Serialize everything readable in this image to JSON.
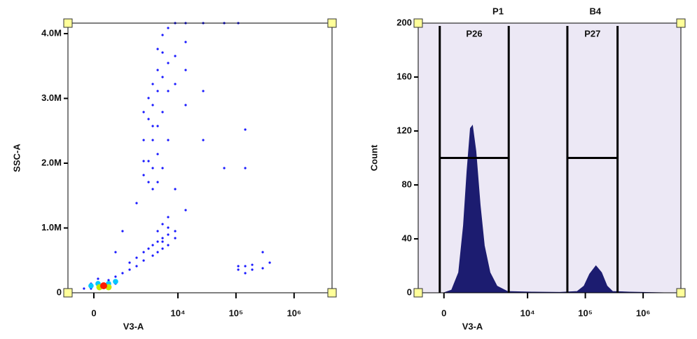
{
  "chart_data": [
    {
      "type": "scatter",
      "xlabel": "V3-A",
      "ylabel": "SSC-A",
      "xscale": {
        "type": "biexponential",
        "width": 716
      },
      "xlim": [
        -870,
        4500000
      ],
      "xticks": [
        0,
        {
          "value": 10000,
          "label": "10⁴"
        },
        {
          "value": 100000,
          "label": "10⁵"
        },
        {
          "value": 1000000,
          "label": "10⁶"
        }
      ],
      "ylim": [
        0,
        4162000
      ],
      "yticks": [
        0,
        {
          "value": 1000000,
          "label": "1.0M"
        },
        {
          "value": 2000000,
          "label": "2.0M"
        },
        {
          "value": 3000000,
          "label": "3.0M"
        },
        {
          "value": 4000000,
          "label": "4.0M"
        }
      ],
      "series": [
        {
          "color": "#1a1aff",
          "x": [
            -286,
            -80,
            120,
            442,
            695,
            1002,
            1390,
            1883,
            -80,
            695,
            1390,
            1883,
            2527,
            3086,
            2527,
            3659,
            4461,
            5427,
            6780,
            4461,
            5427,
            6780,
            8971,
            3659,
            5427,
            6780,
            8971,
            4461,
            6780,
            5427,
            2527,
            3086,
            3659,
            4461,
            3086,
            3659,
            4461,
            5427,
            3659,
            2527,
            4461,
            3086,
            3659,
            5427,
            4461,
            2527,
            6780,
            3086,
            4461,
            3659,
            5427,
            6780,
            2527,
            3659,
            4461,
            5427,
            6780,
            8971,
            13600,
            13600,
            8971,
            6780,
            5427,
            13600,
            27300,
            27300,
            62800,
            144400,
            13600,
            8971,
            1883,
            1002,
            695,
            144400,
            109500,
            144400,
            190400,
            144400,
            109500,
            190400,
            288500,
            381000,
            288500,
            8971,
            13600,
            27300,
            62800,
            109500
          ],
          "values": [
            65000,
            141000,
            216000,
            195000,
            249000,
            303000,
            357000,
            411000,
            65000,
            141000,
            465000,
            541000,
            627000,
            681000,
            497000,
            735000,
            789000,
            843000,
            897000,
            951000,
            681000,
            735000,
            951000,
            573000,
            1060000,
            1005000,
            843000,
            627000,
            1168000,
            789000,
            1816000,
            2032000,
            2357000,
            2573000,
            2681000,
            2897000,
            3114000,
            3330000,
            3222000,
            2357000,
            2141000,
            1708000,
            1924000,
            2789000,
            3438000,
            2789000,
            2357000,
            3005000,
            1708000,
            2573000,
            1924000,
            3114000,
            2032000,
            1600000,
            3762000,
            3978000,
            4087000,
            3654000,
            3438000,
            3870000,
            3222000,
            3546000,
            3708000,
            2897000,
            3114000,
            2357000,
            1924000,
            2519000,
            1276000,
            1600000,
            1384000,
            951000,
            627000,
            1924000,
            357000,
            411000,
            357000,
            303000,
            411000,
            432000,
            378000,
            465000,
            627000,
            4162000,
            4162000,
            4162000,
            4162000,
            4162000
          ]
        },
        {
          "color": "#00c8ff",
          "x": [
            120,
            442,
            695,
            -80
          ],
          "values": [
            141000,
            141000,
            173000,
            108000
          ]
        },
        {
          "color": "#c8e600",
          "x": [
            160,
            442
          ],
          "values": [
            86000,
            86000
          ]
        },
        {
          "color": "#ff1a00",
          "x": [
            286
          ],
          "values": [
            108000
          ]
        }
      ]
    },
    {
      "type": "area",
      "xlabel": "V3-A",
      "ylabel": "Count",
      "xscale": {
        "type": "biexponential",
        "width": 716
      },
      "xlim": [
        -870,
        4500000
      ],
      "xticks": [
        0,
        {
          "value": 10000,
          "label": "10⁴"
        },
        {
          "value": 100000,
          "label": "10⁵"
        },
        {
          "value": 1000000,
          "label": "10⁶"
        }
      ],
      "ylim": [
        0,
        200
      ],
      "yticks": [
        0,
        40,
        80,
        120,
        160,
        200
      ],
      "color": "#1c1c70",
      "background": "#ece8f5",
      "x": [
        0,
        223,
        442,
        614,
        752,
        902,
        1002,
        1181,
        1432,
        1718,
        2184,
        2914,
        4461,
        11843,
        35950,
        72200,
        94950,
        118900,
        152500,
        190400,
        237700,
        296400,
        579000,
        2330000
      ],
      "values": [
        0,
        2,
        15,
        50,
        90,
        122,
        124,
        105,
        65,
        35,
        15,
        5,
        1,
        0.5,
        0.3,
        1,
        5,
        14,
        20,
        15,
        5,
        1,
        0.5,
        0
      ],
      "gates": [
        {
          "name": "P26",
          "parent": "P1",
          "range": [
            -120,
            4700
          ],
          "level": 100
        },
        {
          "name": "P27",
          "parent": "B4",
          "range": [
            48900,
            361000
          ],
          "level": 100
        }
      ]
    }
  ]
}
